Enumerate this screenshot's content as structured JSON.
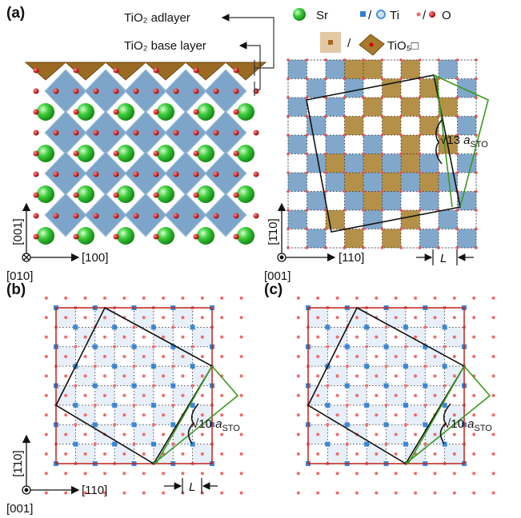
{
  "panel_a": {
    "label": "(a)",
    "adlayer": "TiO₂ adlayer",
    "base_layer": "TiO₂ base layer",
    "left_axes": {
      "vertical": "[001]",
      "horizontal": "[100]",
      "normal": "[010]"
    },
    "legend": {
      "sr": "Sr",
      "ti": "Ti",
      "o": "O",
      "separator": "/",
      "tio5": "TiO₅□"
    },
    "right_axes": {
      "vertical": "[1̄10]",
      "horizontal": "[110]",
      "normal": "[001]"
    },
    "period": "√13",
    "lattice": "a",
    "lattice_sub": "STO",
    "length": "L"
  },
  "panel_b": {
    "label": "(b)",
    "axes": {
      "vertical": "[1̄10]",
      "horizontal": "[110]",
      "normal": "[001]"
    },
    "period": "√10",
    "lattice": "a",
    "lattice_sub": "STO",
    "length": "L"
  },
  "panel_c": {
    "label": "(c)",
    "period": "√10",
    "lattice": "a",
    "lattice_sub": "STO"
  }
}
